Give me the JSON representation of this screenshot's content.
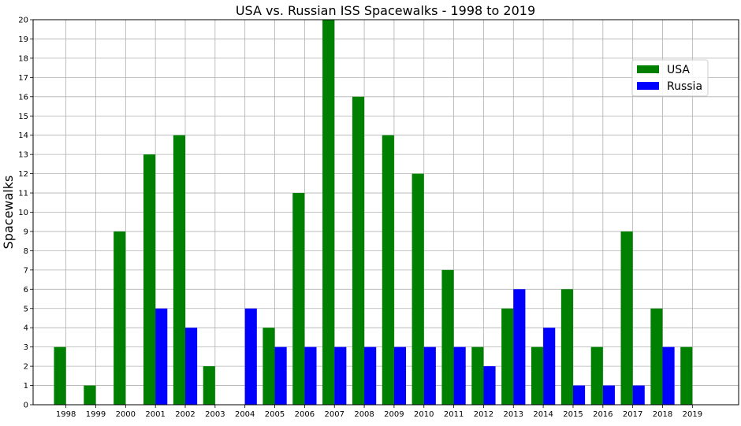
{
  "chart_data": {
    "type": "bar",
    "title": "USA vs. Russian ISS Spacewalks - 1998 to 2019",
    "xlabel": "",
    "ylabel": "Spacewalks",
    "ylim": [
      0,
      20
    ],
    "yticks": [
      0,
      1,
      2,
      3,
      4,
      5,
      6,
      7,
      8,
      9,
      10,
      11,
      12,
      13,
      14,
      15,
      16,
      17,
      18,
      19,
      20
    ],
    "categories": [
      "1998",
      "1999",
      "2000",
      "2001",
      "2002",
      "2003",
      "2004",
      "2005",
      "2006",
      "2007",
      "2008",
      "2009",
      "2010",
      "2011",
      "2012",
      "2013",
      "2014",
      "2015",
      "2016",
      "2017",
      "2018",
      "2019"
    ],
    "series": [
      {
        "name": "USA",
        "color": "#008000",
        "values": [
          3,
          1,
          9,
          13,
          14,
          2,
          0,
          4,
          11,
          20,
          16,
          14,
          12,
          7,
          3,
          5,
          3,
          6,
          3,
          9,
          5,
          3
        ]
      },
      {
        "name": "Russia",
        "color": "#0000ff",
        "values": [
          0,
          0,
          0,
          5,
          4,
          0,
          5,
          3,
          3,
          3,
          3,
          3,
          3,
          3,
          2,
          6,
          4,
          1,
          1,
          1,
          3,
          0
        ]
      }
    ],
    "grid": true,
    "legend_position": "top-right"
  }
}
